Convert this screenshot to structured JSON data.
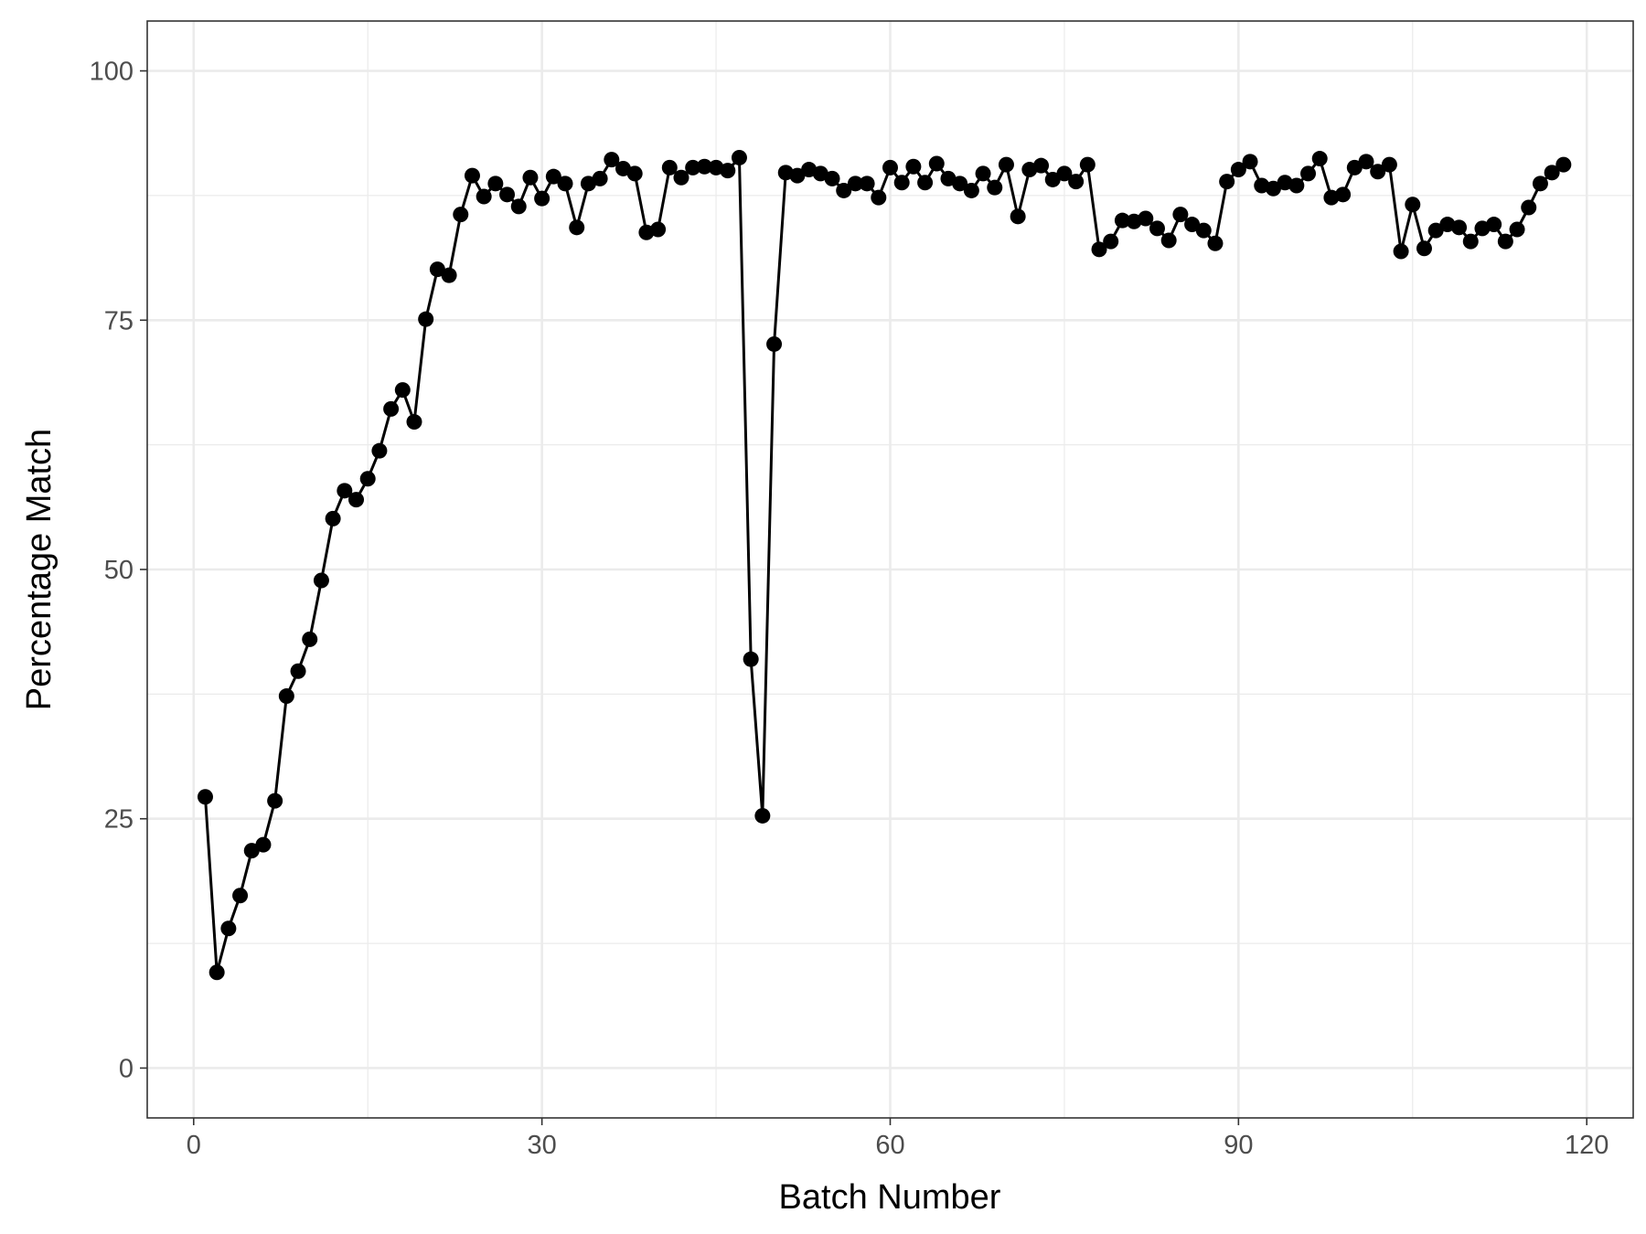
{
  "chart_data": {
    "type": "line",
    "xlabel": "Batch Number",
    "ylabel": "Percentage Match",
    "xlim": [
      -4,
      124
    ],
    "ylim": [
      -5,
      105
    ],
    "x_ticks": [
      0,
      30,
      60,
      90,
      120
    ],
    "y_ticks": [
      0,
      25,
      50,
      75,
      100
    ],
    "x_tick_labels": [
      "0",
      "30",
      "60",
      "90",
      "120"
    ],
    "y_tick_labels": [
      "0",
      "25",
      "50",
      "75",
      "100"
    ],
    "grid": true,
    "legend": "none",
    "series": [
      {
        "color": "#000000",
        "markers": true,
        "x": [
          1,
          2,
          3,
          4,
          5,
          6,
          7,
          8,
          9,
          10,
          11,
          12,
          13,
          14,
          15,
          16,
          17,
          18,
          19,
          20,
          21,
          22,
          23,
          24,
          25,
          26,
          27,
          28,
          29,
          30,
          31,
          32,
          33,
          34,
          35,
          36,
          37,
          38,
          39,
          40,
          41,
          42,
          43,
          44,
          45,
          46,
          47,
          48,
          49,
          50,
          51,
          52,
          53,
          54,
          55,
          56,
          57,
          58,
          59,
          60,
          61,
          62,
          63,
          64,
          65,
          66,
          67,
          68,
          69,
          70,
          71,
          72,
          73,
          74,
          75,
          76,
          77,
          78,
          79,
          80,
          81,
          82,
          83,
          84,
          85,
          86,
          87,
          88,
          89,
          90,
          91,
          92,
          93,
          94,
          95,
          96,
          97,
          98,
          99,
          100,
          101,
          102,
          103,
          104,
          105,
          106,
          107,
          108,
          109,
          110,
          111,
          112,
          113,
          114,
          115,
          116,
          117,
          118
        ],
        "y": [
          27.2,
          9.6,
          14.0,
          17.3,
          21.8,
          22.4,
          26.8,
          37.3,
          39.8,
          43.0,
          48.9,
          55.1,
          57.9,
          57.0,
          59.1,
          61.9,
          66.1,
          68.0,
          64.8,
          75.1,
          80.1,
          79.5,
          85.6,
          89.5,
          87.4,
          88.7,
          87.6,
          86.4,
          89.3,
          87.2,
          89.4,
          88.7,
          84.3,
          88.7,
          89.2,
          91.1,
          90.2,
          89.7,
          83.8,
          84.1,
          90.3,
          89.3,
          90.3,
          90.4,
          90.3,
          90.0,
          91.3,
          41.0,
          25.3,
          72.6,
          89.8,
          89.5,
          90.1,
          89.7,
          89.2,
          88.0,
          88.7,
          88.7,
          87.3,
          90.3,
          88.8,
          90.4,
          88.8,
          90.7,
          89.2,
          88.7,
          88.0,
          89.7,
          88.3,
          90.6,
          85.4,
          90.1,
          90.5,
          89.1,
          89.7,
          88.9,
          90.6,
          82.1,
          82.9,
          85.0,
          84.9,
          85.2,
          84.2,
          83.0,
          85.6,
          84.6,
          84.0,
          82.7,
          88.9,
          90.1,
          90.9,
          88.5,
          88.2,
          88.8,
          88.5,
          89.7,
          91.2,
          87.3,
          87.6,
          90.3,
          90.9,
          89.9,
          90.6,
          81.9,
          86.6,
          82.2,
          84.0,
          84.6,
          84.3,
          82.9,
          84.2,
          84.6,
          82.9,
          84.1,
          86.3,
          88.7,
          89.8,
          90.6
        ]
      }
    ]
  }
}
